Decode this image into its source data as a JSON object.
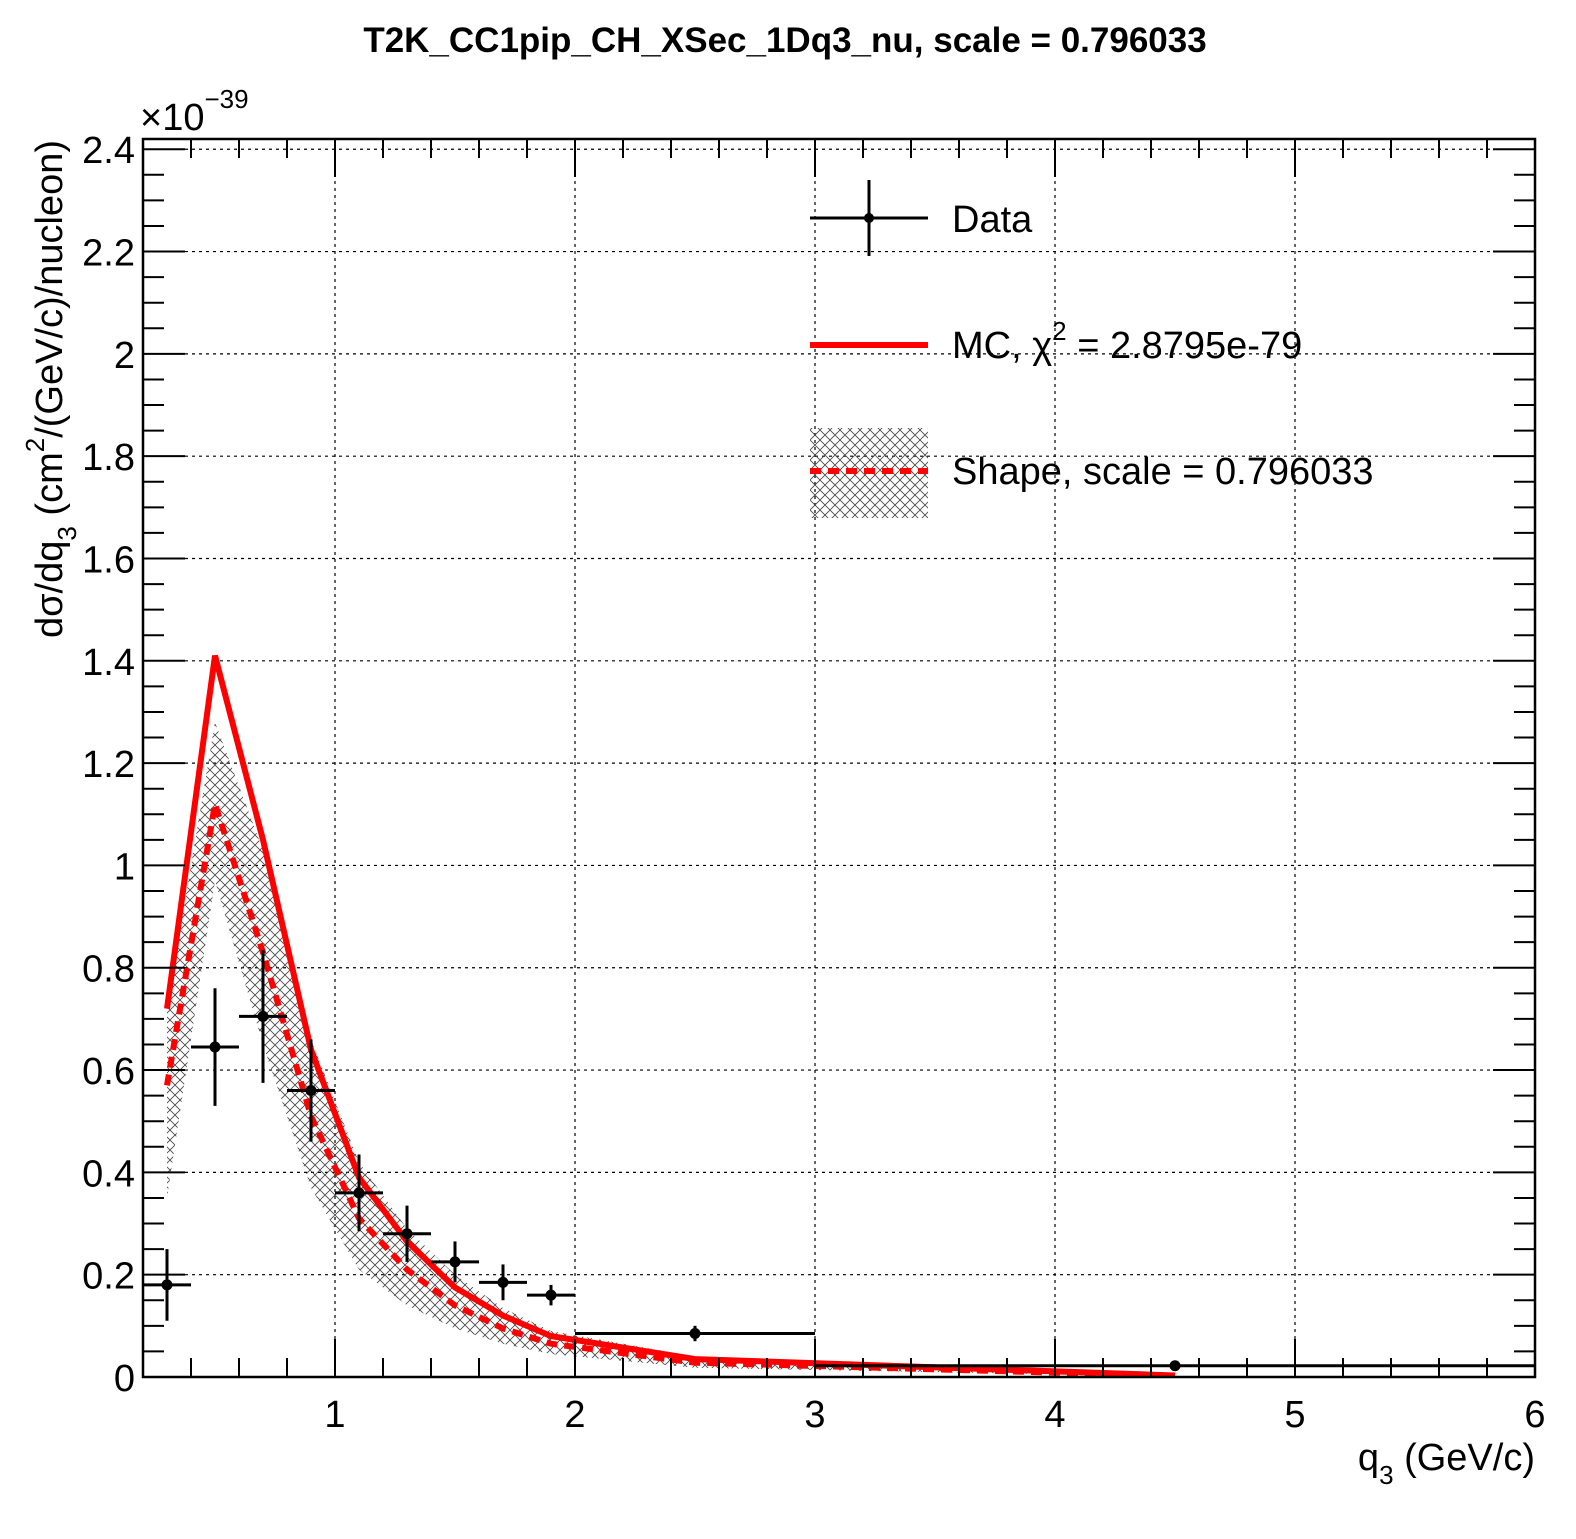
{
  "chart_data": {
    "type": "line",
    "title": "T2K_CC1pip_CH_XSec_1Dq3_nu, scale = 0.796033",
    "xlabel": {
      "main": "q",
      "sub": "3",
      "unit": " (GeV/c)"
    },
    "ylabel": {
      "a": "dσ/dq",
      "a_sub": "3",
      "b": " (cm",
      "b_sup": "2",
      "c": "/(GeV/c)/nucleon)"
    },
    "y_multiplier": {
      "base": "×10",
      "exp": "−39"
    },
    "xlim": [
      0.2,
      6
    ],
    "ylim": [
      0,
      2.42
    ],
    "xticks": [
      "1",
      "2",
      "3",
      "4",
      "5",
      "6"
    ],
    "yticks": [
      "0",
      "0.2",
      "0.4",
      "0.6",
      "0.8",
      "1",
      "1.2",
      "1.4",
      "1.6",
      "1.8",
      "2",
      "2.2",
      "2.4"
    ],
    "grid": true,
    "legend_position": "top-right",
    "series": [
      {
        "name": "Data",
        "kind": "points_with_errors",
        "color": "#000000",
        "points": [
          {
            "x": 0.3,
            "xlo": 0.2,
            "xhi": 0.4,
            "y": 0.18,
            "err": 0.07
          },
          {
            "x": 0.5,
            "xlo": 0.4,
            "xhi": 0.6,
            "y": 0.645,
            "err": 0.115
          },
          {
            "x": 0.7,
            "xlo": 0.6,
            "xhi": 0.8,
            "y": 0.705,
            "err": 0.13
          },
          {
            "x": 0.9,
            "xlo": 0.8,
            "xhi": 1.0,
            "y": 0.56,
            "err": 0.1
          },
          {
            "x": 1.1,
            "xlo": 1.0,
            "xhi": 1.2,
            "y": 0.36,
            "err": 0.075
          },
          {
            "x": 1.3,
            "xlo": 1.2,
            "xhi": 1.4,
            "y": 0.28,
            "err": 0.055
          },
          {
            "x": 1.5,
            "xlo": 1.4,
            "xhi": 1.6,
            "y": 0.225,
            "err": 0.04
          },
          {
            "x": 1.7,
            "xlo": 1.6,
            "xhi": 1.8,
            "y": 0.185,
            "err": 0.035
          },
          {
            "x": 1.9,
            "xlo": 1.8,
            "xhi": 2.0,
            "y": 0.16,
            "err": 0.02
          },
          {
            "x": 2.5,
            "xlo": 2.0,
            "xhi": 3.0,
            "y": 0.085,
            "err": 0.015
          },
          {
            "x": 4.5,
            "xlo": 3.0,
            "xhi": 6.0,
            "y": 0.022,
            "err": 0.005
          }
        ]
      },
      {
        "name": "MC, χ² = 2.8795e-79",
        "legend": {
          "pre": "MC, χ",
          "sup": "2",
          "post": " = 2.8795e-79"
        },
        "kind": "line",
        "color": "#ff0000",
        "x": [
          0.3,
          0.5,
          0.7,
          0.9,
          1.1,
          1.3,
          1.5,
          1.7,
          1.9,
          2.5,
          4.5
        ],
        "y": [
          0.72,
          1.41,
          1.05,
          0.64,
          0.39,
          0.265,
          0.175,
          0.12,
          0.08,
          0.035,
          0.003
        ]
      },
      {
        "name": "Shape, scale = 0.796033",
        "kind": "dashed_line_with_band",
        "color": "#ff0000",
        "x": [
          0.3,
          0.5,
          0.7,
          0.9,
          1.1,
          1.3,
          1.5,
          1.7,
          1.9,
          2.5,
          4.5
        ],
        "y": [
          0.57,
          1.12,
          0.83,
          0.51,
          0.31,
          0.21,
          0.14,
          0.095,
          0.065,
          0.028,
          0.002
        ],
        "band_lo": [
          0.35,
          0.97,
          0.65,
          0.37,
          0.21,
          0.14,
          0.095,
          0.065,
          0.045,
          0.018,
          0.001
        ],
        "band_hi": [
          0.72,
          1.28,
          1.03,
          0.66,
          0.42,
          0.29,
          0.2,
          0.135,
          0.09,
          0.04,
          0.004
        ]
      }
    ]
  }
}
